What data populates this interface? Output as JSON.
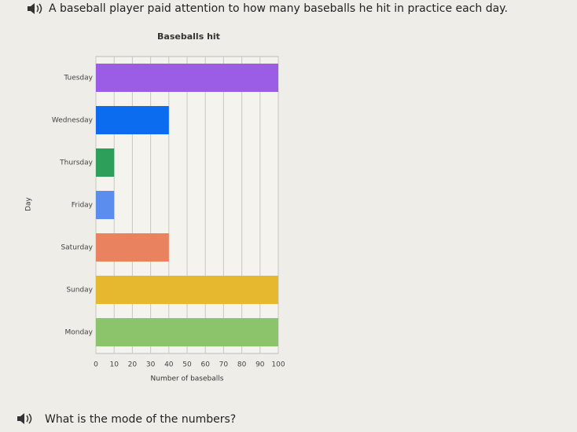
{
  "question": "A baseball player paid attention to how many baseballs he hit in practice each day.",
  "prompt": "What is the mode of the numbers?",
  "chart_data": {
    "type": "barh",
    "title": "Baseballs hit",
    "xlabel": "Number of baseballs",
    "ylabel": "Day",
    "categories": [
      "Tuesday",
      "Wednesday",
      "Thursday",
      "Friday",
      "Saturday",
      "Sunday",
      "Monday"
    ],
    "values": [
      100,
      40,
      10,
      10,
      40,
      100,
      100
    ],
    "colors": [
      "#9b5de5",
      "#0b6cf0",
      "#2e9e5b",
      "#5b8def",
      "#e8825f",
      "#e6b830",
      "#8bc46a"
    ],
    "xlim": [
      0,
      100
    ],
    "xticks": [
      0,
      10,
      20,
      30,
      40,
      50,
      60,
      70,
      80,
      90,
      100
    ],
    "grid": true
  }
}
